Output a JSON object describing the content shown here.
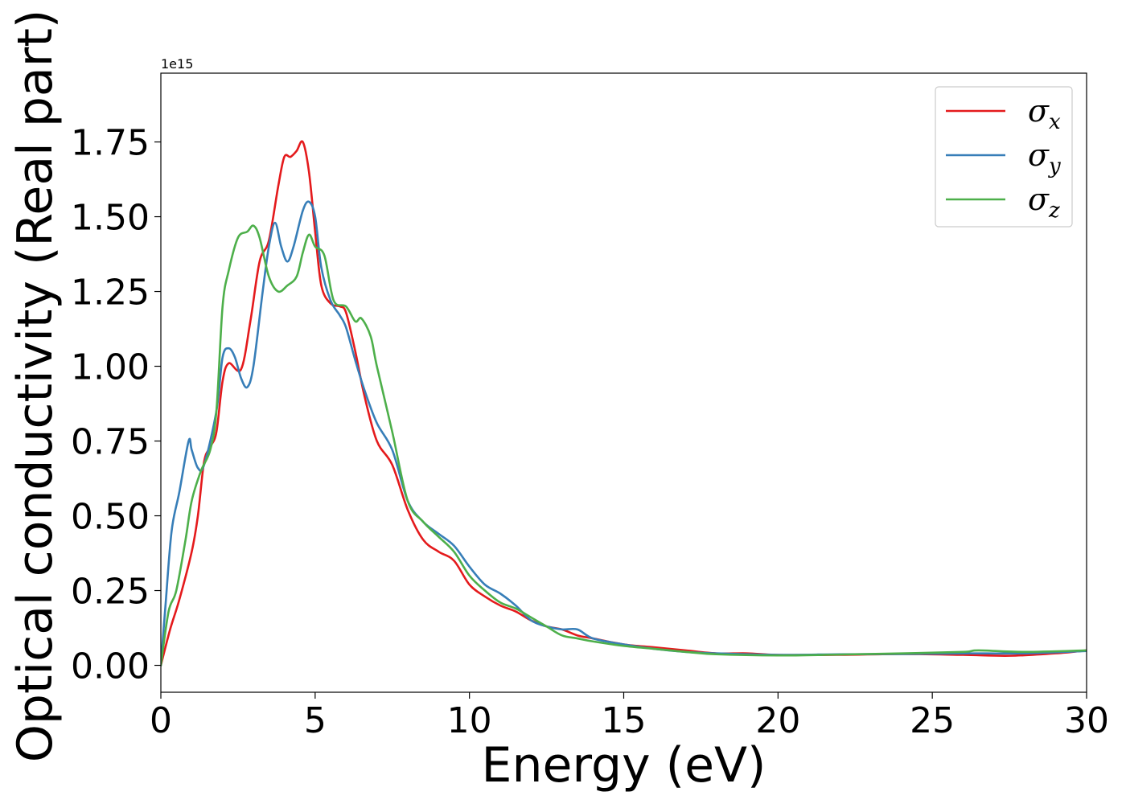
{
  "chart_data": {
    "type": "line",
    "title": "",
    "xlabel": "Energy (eV)",
    "ylabel": "Optical conductivity (Real part)",
    "y_offset_text": "1e15",
    "xlim": [
      0,
      30
    ],
    "ylim": [
      -0.09,
      1.98
    ],
    "xticks": [
      0,
      5,
      10,
      15,
      20,
      25,
      30
    ],
    "xtick_labels": [
      "0",
      "5",
      "10",
      "15",
      "20",
      "25",
      "30"
    ],
    "yticks": [
      0.0,
      0.25,
      0.5,
      0.75,
      1.0,
      1.25,
      1.5,
      1.75
    ],
    "ytick_labels": [
      "0.00",
      "0.25",
      "0.50",
      "0.75",
      "1.00",
      "1.25",
      "1.50",
      "1.75"
    ],
    "grid": false,
    "legend_position": "top-right",
    "series": [
      {
        "name": "σx",
        "symbol": "σ",
        "subscript": "x",
        "color": "#e41a1c",
        "points": [
          [
            0,
            0
          ],
          [
            0.3,
            0.12
          ],
          [
            0.6,
            0.22
          ],
          [
            1,
            0.38
          ],
          [
            1.2,
            0.5
          ],
          [
            1.4,
            0.68
          ],
          [
            1.6,
            0.73
          ],
          [
            1.8,
            0.78
          ],
          [
            2,
            0.95
          ],
          [
            2.2,
            1.01
          ],
          [
            2.6,
            0.99
          ],
          [
            2.9,
            1.15
          ],
          [
            3.2,
            1.35
          ],
          [
            3.5,
            1.42
          ],
          [
            3.8,
            1.6
          ],
          [
            4.0,
            1.7
          ],
          [
            4.2,
            1.7
          ],
          [
            4.4,
            1.72
          ],
          [
            4.6,
            1.75
          ],
          [
            4.8,
            1.65
          ],
          [
            5.0,
            1.45
          ],
          [
            5.2,
            1.27
          ],
          [
            5.5,
            1.21
          ],
          [
            5.8,
            1.2
          ],
          [
            6.0,
            1.18
          ],
          [
            6.3,
            1.05
          ],
          [
            6.6,
            0.9
          ],
          [
            7.0,
            0.75
          ],
          [
            7.5,
            0.67
          ],
          [
            8.0,
            0.52
          ],
          [
            8.5,
            0.42
          ],
          [
            9.0,
            0.38
          ],
          [
            9.5,
            0.35
          ],
          [
            10.0,
            0.27
          ],
          [
            10.5,
            0.23
          ],
          [
            11.0,
            0.2
          ],
          [
            11.5,
            0.18
          ],
          [
            12.0,
            0.15
          ],
          [
            12.5,
            0.13
          ],
          [
            13.0,
            0.12
          ],
          [
            13.5,
            0.1
          ],
          [
            14.0,
            0.09
          ],
          [
            15.0,
            0.07
          ],
          [
            16.0,
            0.06
          ],
          [
            17.0,
            0.05
          ],
          [
            18.0,
            0.04
          ],
          [
            19.0,
            0.04
          ],
          [
            20.0,
            0.035
          ],
          [
            22.0,
            0.035
          ],
          [
            24.0,
            0.038
          ],
          [
            26.0,
            0.035
          ],
          [
            27.5,
            0.032
          ],
          [
            29.0,
            0.04
          ],
          [
            30.0,
            0.05
          ]
        ]
      },
      {
        "name": "σy",
        "symbol": "σ",
        "subscript": "y",
        "color": "#377eb8",
        "points": [
          [
            0,
            0
          ],
          [
            0.15,
            0.2
          ],
          [
            0.35,
            0.45
          ],
          [
            0.6,
            0.58
          ],
          [
            0.9,
            0.75
          ],
          [
            1.0,
            0.72
          ],
          [
            1.2,
            0.66
          ],
          [
            1.4,
            0.67
          ],
          [
            1.8,
            0.85
          ],
          [
            2.0,
            1.03
          ],
          [
            2.2,
            1.06
          ],
          [
            2.4,
            1.03
          ],
          [
            2.6,
            0.96
          ],
          [
            2.8,
            0.93
          ],
          [
            3.0,
            1.0
          ],
          [
            3.3,
            1.25
          ],
          [
            3.5,
            1.4
          ],
          [
            3.7,
            1.48
          ],
          [
            3.9,
            1.4
          ],
          [
            4.1,
            1.35
          ],
          [
            4.3,
            1.4
          ],
          [
            4.6,
            1.52
          ],
          [
            4.8,
            1.55
          ],
          [
            5.0,
            1.5
          ],
          [
            5.2,
            1.33
          ],
          [
            5.5,
            1.22
          ],
          [
            5.8,
            1.17
          ],
          [
            6.0,
            1.13
          ],
          [
            6.3,
            1.02
          ],
          [
            6.6,
            0.92
          ],
          [
            7.0,
            0.81
          ],
          [
            7.5,
            0.72
          ],
          [
            8.0,
            0.55
          ],
          [
            8.5,
            0.48
          ],
          [
            9.0,
            0.44
          ],
          [
            9.5,
            0.4
          ],
          [
            10.0,
            0.33
          ],
          [
            10.5,
            0.27
          ],
          [
            11.0,
            0.24
          ],
          [
            11.5,
            0.2
          ],
          [
            12.0,
            0.15
          ],
          [
            12.5,
            0.13
          ],
          [
            13.0,
            0.12
          ],
          [
            13.5,
            0.12
          ],
          [
            14.0,
            0.09
          ],
          [
            15.0,
            0.07
          ],
          [
            16.0,
            0.055
          ],
          [
            17.0,
            0.045
          ],
          [
            18.0,
            0.04
          ],
          [
            20.0,
            0.035
          ],
          [
            22.0,
            0.037
          ],
          [
            24.0,
            0.038
          ],
          [
            26.0,
            0.04
          ],
          [
            28.0,
            0.04
          ],
          [
            30.0,
            0.048
          ]
        ]
      },
      {
        "name": "σz",
        "symbol": "σ",
        "subscript": "z",
        "color": "#4daf4a",
        "points": [
          [
            0,
            0
          ],
          [
            0.25,
            0.18
          ],
          [
            0.5,
            0.25
          ],
          [
            0.8,
            0.42
          ],
          [
            1.0,
            0.55
          ],
          [
            1.3,
            0.65
          ],
          [
            1.6,
            0.72
          ],
          [
            1.8,
            0.85
          ],
          [
            2.0,
            1.2
          ],
          [
            2.2,
            1.32
          ],
          [
            2.5,
            1.43
          ],
          [
            2.8,
            1.45
          ],
          [
            3.0,
            1.47
          ],
          [
            3.2,
            1.43
          ],
          [
            3.5,
            1.3
          ],
          [
            3.8,
            1.25
          ],
          [
            4.1,
            1.27
          ],
          [
            4.4,
            1.3
          ],
          [
            4.6,
            1.38
          ],
          [
            4.8,
            1.44
          ],
          [
            5.0,
            1.4
          ],
          [
            5.3,
            1.37
          ],
          [
            5.6,
            1.22
          ],
          [
            6.0,
            1.2
          ],
          [
            6.3,
            1.15
          ],
          [
            6.5,
            1.16
          ],
          [
            6.8,
            1.1
          ],
          [
            7.0,
            1.0
          ],
          [
            7.5,
            0.78
          ],
          [
            8.0,
            0.55
          ],
          [
            8.5,
            0.48
          ],
          [
            9.0,
            0.43
          ],
          [
            9.5,
            0.38
          ],
          [
            10.0,
            0.3
          ],
          [
            10.5,
            0.25
          ],
          [
            11.0,
            0.21
          ],
          [
            11.5,
            0.19
          ],
          [
            12.0,
            0.16
          ],
          [
            12.5,
            0.13
          ],
          [
            13.0,
            0.1
          ],
          [
            13.5,
            0.09
          ],
          [
            14.0,
            0.08
          ],
          [
            15.0,
            0.065
          ],
          [
            16.0,
            0.055
          ],
          [
            17.0,
            0.045
          ],
          [
            18.0,
            0.037
          ],
          [
            20.0,
            0.033
          ],
          [
            22.0,
            0.036
          ],
          [
            24.0,
            0.04
          ],
          [
            26.0,
            0.045
          ],
          [
            26.5,
            0.05
          ],
          [
            28.0,
            0.045
          ],
          [
            30.0,
            0.05
          ]
        ]
      }
    ]
  }
}
